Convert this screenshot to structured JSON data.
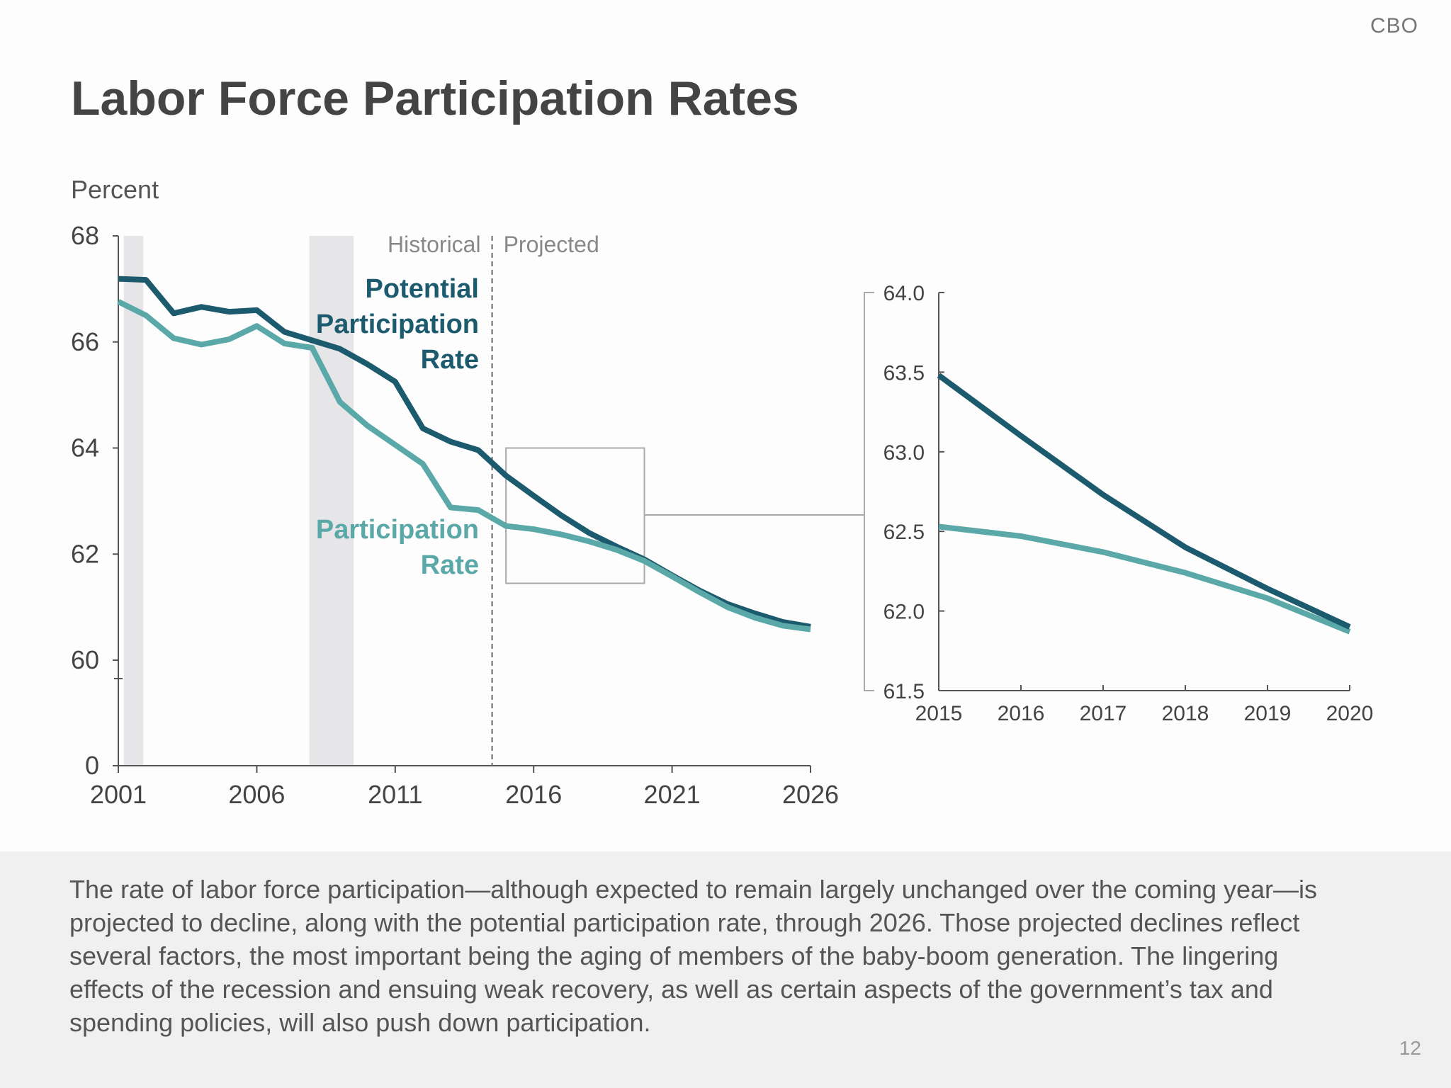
{
  "org": "CBO",
  "title": "Labor Force Participation Rates",
  "caption": "The rate of labor force participation—although expected to remain largely unchanged over the coming year—is projected to decline, along with the potential participation rate, through 2026. Those projected declines reflect several factors, the most important being the aging of members of the baby-boom generation. The lingering effects of the recession and ensuing weak recovery, as well as certain aspects of the government’s tax and spending policies, will also push down participation.",
  "page_number": "12",
  "colors": {
    "potential": "#1c5a6e",
    "participation": "#5aa8a8",
    "recession": "#e6e6e8",
    "axis": "#555555"
  },
  "chart_data": [
    {
      "type": "line",
      "ylabel": "Percent",
      "xlim": [
        2001,
        2026
      ],
      "ylim": [
        60,
        68
      ],
      "y_axis_break": true,
      "yticks": [
        "0",
        "60",
        "62",
        "64",
        "66",
        "68"
      ],
      "xticks": [
        "2001",
        "2006",
        "2011",
        "2016",
        "2021",
        "2026"
      ],
      "annotations": {
        "historical": "Historical",
        "projected": "Projected",
        "divider_year": 2014.5
      },
      "shaded_periods": [
        [
          2001.2,
          2001.9
        ],
        [
          2007.9,
          2009.5
        ]
      ],
      "zoom_box": {
        "x": [
          2015,
          2020
        ],
        "y": [
          61.45,
          64.0
        ]
      },
      "x": [
        2001,
        2002,
        2003,
        2004,
        2005,
        2006,
        2007,
        2008,
        2009,
        2010,
        2011,
        2012,
        2013,
        2014,
        2015,
        2016,
        2017,
        2018,
        2019,
        2020,
        2021,
        2022,
        2023,
        2024,
        2025,
        2026
      ],
      "series": [
        {
          "name": "Potential Participation Rate",
          "label_lines": [
            "Potential",
            "Participation",
            "Rate"
          ],
          "values": [
            67.19,
            67.17,
            66.54,
            66.66,
            66.57,
            66.6,
            66.19,
            66.03,
            65.87,
            65.58,
            65.25,
            64.37,
            64.12,
            63.96,
            63.48,
            63.1,
            62.73,
            62.4,
            62.14,
            61.9,
            61.6,
            61.31,
            61.06,
            60.88,
            60.72,
            60.63
          ]
        },
        {
          "name": "Participation Rate",
          "label_lines": [
            "Participation",
            "Rate"
          ],
          "values": [
            66.76,
            66.5,
            66.07,
            65.95,
            66.05,
            66.3,
            65.97,
            65.89,
            64.87,
            64.42,
            64.06,
            63.7,
            62.88,
            62.83,
            62.53,
            62.47,
            62.37,
            62.24,
            62.08,
            61.87,
            61.58,
            61.28,
            61.0,
            60.8,
            60.65,
            60.58
          ]
        }
      ]
    },
    {
      "type": "line",
      "xlim": [
        2015,
        2020
      ],
      "ylim": [
        61.5,
        64.0
      ],
      "yticks": [
        "61.5",
        "62.0",
        "62.5",
        "63.0",
        "63.5",
        "64.0"
      ],
      "xticks": [
        "2015",
        "2016",
        "2017",
        "2018",
        "2019",
        "2020"
      ],
      "x": [
        2015,
        2016,
        2017,
        2018,
        2019,
        2020
      ],
      "series": [
        {
          "values": [
            63.48,
            63.1,
            62.73,
            62.4,
            62.14,
            61.9
          ]
        },
        {
          "values": [
            62.53,
            62.47,
            62.37,
            62.24,
            62.08,
            61.87
          ]
        }
      ]
    }
  ]
}
